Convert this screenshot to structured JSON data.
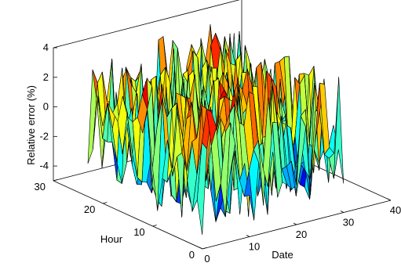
{
  "chart_data": {
    "type": "surface-3d",
    "title": "",
    "xlabel": "Date",
    "ylabel": "Hour",
    "zlabel": "Relative error (%)",
    "xlim": [
      0,
      40
    ],
    "ylim": [
      0,
      30
    ],
    "zlim": [
      -5,
      4
    ],
    "x_ticks": [
      "0",
      "10",
      "20",
      "30",
      "40"
    ],
    "y_ticks": [
      "0",
      "10",
      "20",
      "30"
    ],
    "z_ticks": [
      "-4",
      "-2",
      "0",
      "2",
      "4"
    ],
    "grid": false,
    "colormap": "jet",
    "x_count": 31,
    "y_count": 24,
    "z_rows": "pseudo-random relative error values in range -4.6..4.3 across a 24 (hour) by 31 (date) grid"
  }
}
